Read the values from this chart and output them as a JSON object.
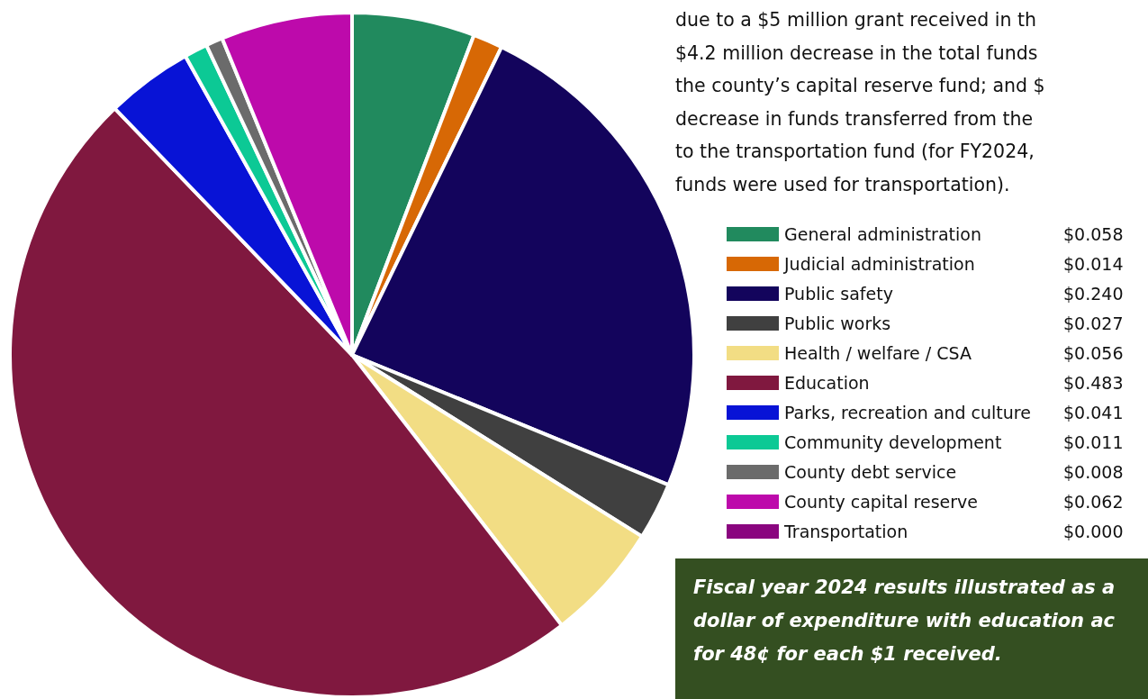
{
  "chart_data": {
    "type": "pie",
    "categories": [
      "General administration",
      "Judicial administration",
      "Public safety",
      "Public works",
      "Health / welfare / CSA",
      "Education",
      "Parks, recreation and culture",
      "Community development",
      "County debt service",
      "County capital reserve",
      "Transportation"
    ],
    "values": [
      0.058,
      0.014,
      0.24,
      0.027,
      0.056,
      0.483,
      0.041,
      0.011,
      0.008,
      0.062,
      0.0
    ],
    "value_labels": [
      "$0.058",
      "$0.014",
      "$0.240",
      "$0.027",
      "$0.056",
      "$0.483",
      "$0.041",
      "$0.011",
      "$0.008",
      "$0.062",
      "$0.000"
    ],
    "colors": [
      "#218a5e",
      "#d76805",
      "#13045c",
      "#404040",
      "#f2dd84",
      "#80183f",
      "#0813d6",
      "#0cc995",
      "#6b6b6b",
      "#bd0aab",
      "#8a057f"
    ],
    "legend": "right",
    "annotations": [
      "due to a $5 million grant received in th\n$4.2 million decrease in the total funds\nthe county’s capital reserve fund; and $\ndecrease in funds transferred from the\nto the transportation fund (for FY2024,\nfunds were used for transportation).",
      "Fiscal year 2024 results illustrated as a\ndollar of expenditure with education ac\nfor 48¢ for each $1 received."
    ]
  }
}
